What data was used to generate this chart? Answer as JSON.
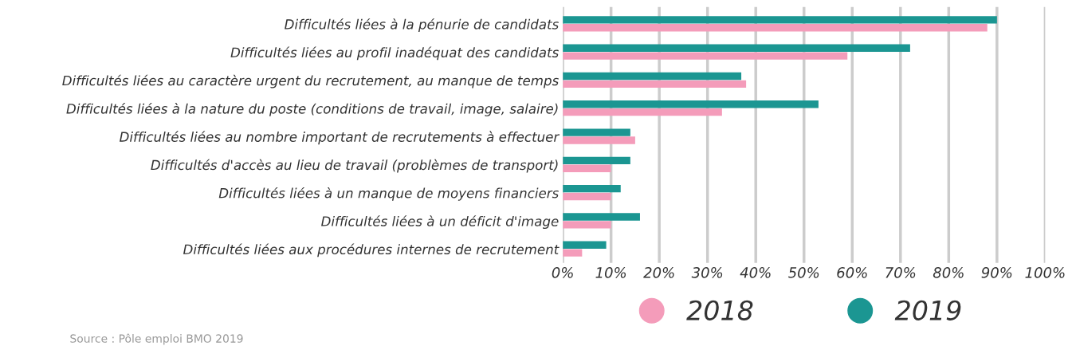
{
  "chart_data": {
    "type": "bar",
    "orientation": "horizontal",
    "categories": [
      "Difficultés liées à la pénurie de candidats",
      "Difficultés liées au profil inadéquat des candidats",
      "Difficultés liées au caractère urgent du recrutement, au manque de temps",
      "Difficultés liées à la nature du poste (conditions de travail, image, salaire)",
      "Difficultés liées au nombre important de recrutements à effectuer",
      "Difficultés d'accès au lieu de travail (problèmes de transport)",
      "Difficultés liées à un manque de moyens financiers",
      "Difficultés liées à un déficit d'image",
      "Difficultés liées aux procédures internes de recrutement"
    ],
    "series": [
      {
        "name": "2018",
        "color": "#f49cba",
        "values": [
          88,
          59,
          38,
          33,
          15,
          10,
          10,
          10,
          4
        ]
      },
      {
        "name": "2019",
        "color": "#1b9692",
        "values": [
          90,
          72,
          37,
          53,
          14,
          14,
          12,
          16,
          9
        ]
      }
    ],
    "xlim": [
      0,
      100
    ],
    "xticks": [
      {
        "value": 0,
        "label": "0%"
      },
      {
        "value": 10,
        "label": "10%"
      },
      {
        "value": 20,
        "label": "20%"
      },
      {
        "value": 30,
        "label": "30%"
      },
      {
        "value": 40,
        "label": "40%"
      },
      {
        "value": 50,
        "label": "50%"
      },
      {
        "value": 60,
        "label": "60%"
      },
      {
        "value": 70,
        "label": "70%"
      },
      {
        "value": 80,
        "label": "80%"
      },
      {
        "value": 90,
        "label": "90%"
      },
      {
        "value": 100,
        "label": "100%"
      }
    ],
    "grid": "x",
    "legend": "bottom right",
    "annotations": [
      "Source : Pôle emploi BMO 2019"
    ]
  }
}
